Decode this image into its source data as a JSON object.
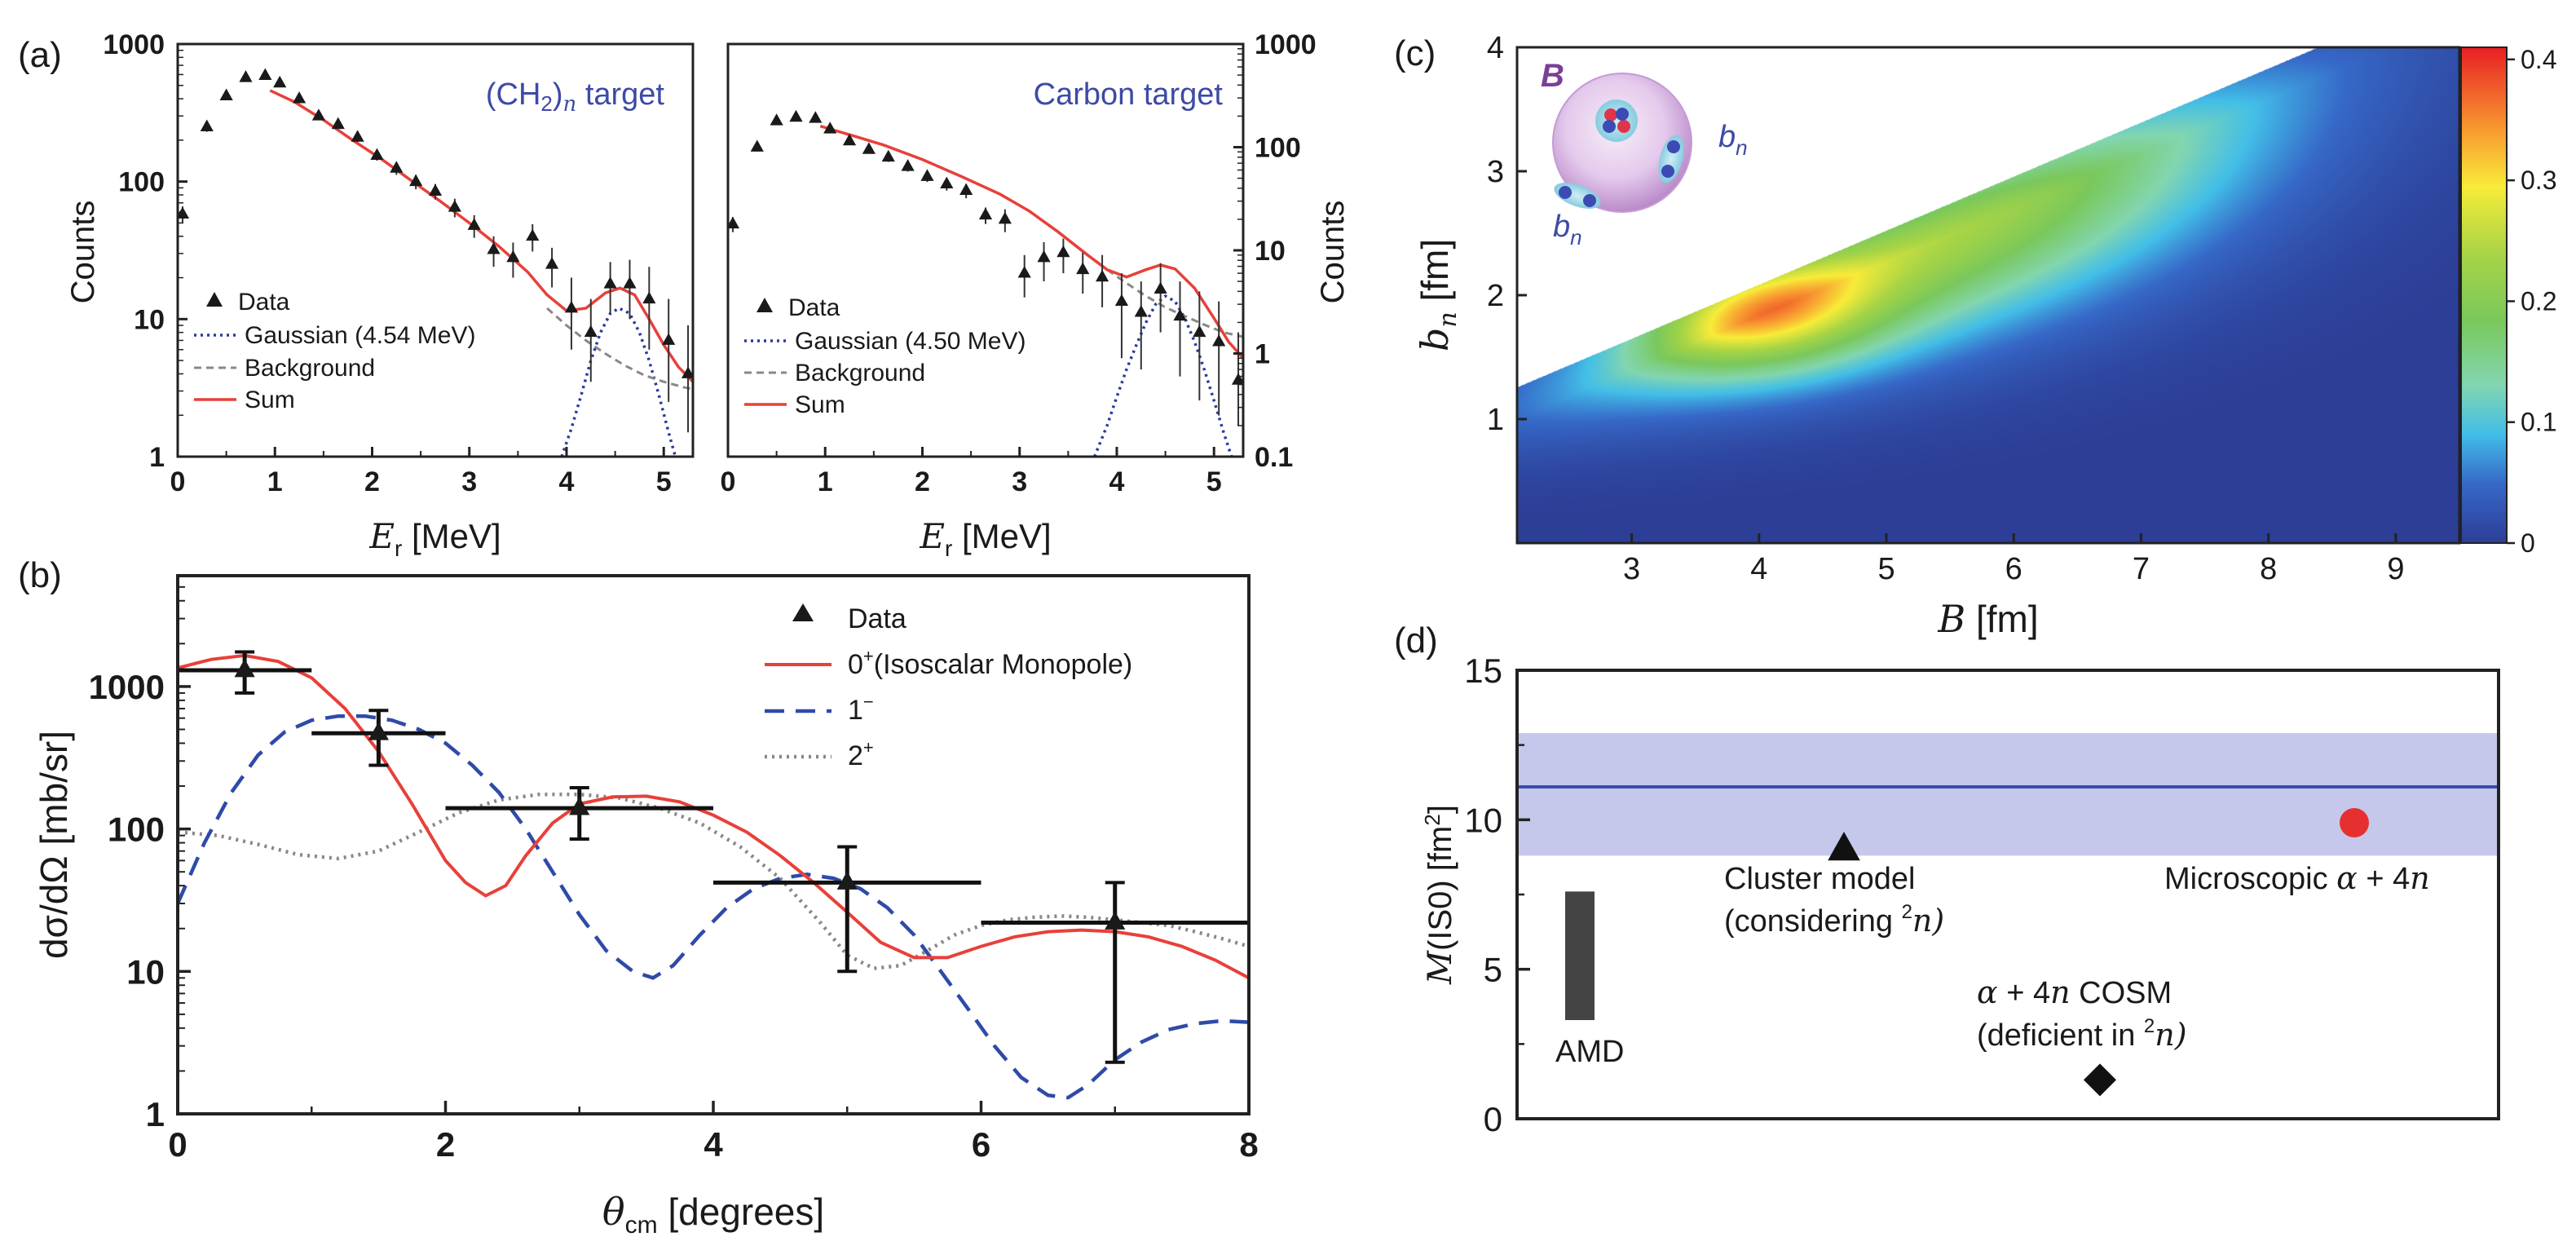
{
  "colors": {
    "red": "#e8403a",
    "blue_dash": "#2f4aa8",
    "blue_dot": "#2a3a9c",
    "gray": "#888888",
    "label_blue": "#3d4aa6",
    "band": "#c5c8ea",
    "band_line": "#3b4bb3",
    "point_red": "#e63030",
    "bar_gray": "#444444"
  },
  "chart_data": [
    {
      "panel": "(a)",
      "type": "scatter",
      "title": "",
      "target_label": {
        "pre": "(CH",
        "sub1": "2",
        "mid": ")",
        "sub2": "n",
        "post": " target"
      },
      "xlabel": "E",
      "xlabel_sub": "r",
      "xlabel_unit": " [MeV]",
      "ylabel": "Counts",
      "xlim": [
        0,
        5.3
      ],
      "ylim": [
        1,
        1000
      ],
      "yscale": "log",
      "xticks": [
        "0",
        "1",
        "2",
        "3",
        "4",
        "5"
      ],
      "yticks": [
        "1",
        "10",
        "100",
        "1000"
      ],
      "legend": {
        "data": "Data",
        "gauss": "Gaussian (4.54 MeV)",
        "bg": "Background",
        "sum": "Sum"
      },
      "data": {
        "x": [
          0.05,
          0.3,
          0.5,
          0.7,
          0.9,
          1.05,
          1.25,
          1.45,
          1.65,
          1.85,
          2.05,
          2.25,
          2.45,
          2.65,
          2.85,
          3.05,
          3.25,
          3.45,
          3.65,
          3.85,
          4.05,
          4.25,
          4.45,
          4.65,
          4.85,
          5.05,
          5.25
        ],
        "y": [
          58,
          250,
          420,
          570,
          590,
          520,
          400,
          300,
          260,
          210,
          155,
          125,
          100,
          85,
          65,
          48,
          32,
          28,
          40,
          25,
          12,
          8,
          18,
          18,
          14,
          7,
          4
        ],
        "err_lo": [
          50,
          230,
          400,
          545,
          565,
          495,
          380,
          280,
          242,
          194,
          142,
          112,
          88,
          74,
          55,
          39,
          24,
          20,
          31,
          17,
          6,
          3.5,
          11,
          10,
          6,
          2.5,
          1.5
        ],
        "err_hi": [
          66,
          270,
          440,
          595,
          615,
          545,
          420,
          320,
          278,
          226,
          168,
          138,
          112,
          96,
          75,
          57,
          40,
          36,
          49,
          33,
          20,
          14,
          26,
          27,
          24,
          14,
          9
        ]
      },
      "sum": {
        "x": [
          0.95,
          1.2,
          1.5,
          1.8,
          2.1,
          2.4,
          2.7,
          3.0,
          3.3,
          3.6,
          3.8,
          4.0,
          4.2,
          4.4,
          4.55,
          4.7,
          4.85,
          5.0,
          5.15,
          5.3
        ],
        "y": [
          460,
          380,
          280,
          200,
          145,
          102,
          72,
          50,
          34,
          22,
          15,
          11.5,
          12,
          15.5,
          16.8,
          15,
          10,
          6.5,
          4.5,
          3.5
        ]
      },
      "background": {
        "x": [
          3.8,
          4.0,
          4.2,
          4.4,
          4.6,
          4.8,
          5.0,
          5.2,
          5.3
        ],
        "y": [
          12,
          9,
          7,
          5.6,
          4.6,
          3.9,
          3.5,
          3.2,
          3.1
        ]
      },
      "gaussian": {
        "x": [
          3.95,
          4.05,
          4.15,
          4.25,
          4.35,
          4.45,
          4.54,
          4.65,
          4.75,
          4.85,
          4.95,
          5.05,
          5.12
        ],
        "y": [
          1,
          1.6,
          2.8,
          5,
          8,
          11,
          12,
          11,
          8,
          5,
          2.8,
          1.5,
          1
        ]
      }
    },
    {
      "panel": "",
      "type": "scatter",
      "title": "",
      "target_label": "Carbon target",
      "xlabel": "E",
      "xlabel_sub": "r",
      "xlabel_unit": " [MeV]",
      "ylabel": "Counts",
      "xlim": [
        0,
        5.3
      ],
      "ylim": [
        0.1,
        1000
      ],
      "yscale": "log",
      "xticks": [
        "0",
        "1",
        "2",
        "3",
        "4",
        "5"
      ],
      "yticks": [
        "0.1",
        "1",
        "10",
        "100",
        "1000"
      ],
      "legend": {
        "data": "Data",
        "gauss": "Gaussian (4.50 MeV)",
        "bg": "Background",
        "sum": "Sum"
      },
      "data": {
        "x": [
          0.05,
          0.3,
          0.5,
          0.7,
          0.9,
          1.05,
          1.25,
          1.45,
          1.65,
          1.85,
          2.05,
          2.25,
          2.45,
          2.65,
          2.85,
          3.05,
          3.25,
          3.45,
          3.65,
          3.85,
          4.05,
          4.25,
          4.45,
          4.65,
          4.85,
          5.05,
          5.25
        ],
        "y": [
          18,
          100,
          180,
          195,
          190,
          150,
          115,
          95,
          80,
          65,
          52,
          44,
          38,
          22,
          20,
          6,
          8.5,
          9.5,
          6.5,
          5.5,
          3.2,
          2.5,
          4.2,
          2.3,
          1.6,
          1.3,
          0.55
        ],
        "err_lo": [
          15,
          92,
          168,
          183,
          178,
          140,
          106,
          87,
          72,
          58,
          46,
          38,
          32,
          18,
          15,
          3.5,
          5,
          6,
          3.8,
          2.8,
          0.9,
          0.7,
          1.6,
          0.6,
          0.35,
          0.25,
          0.2
        ],
        "err_hi": [
          21,
          108,
          192,
          207,
          202,
          160,
          124,
          103,
          88,
          72,
          58,
          50,
          44,
          26,
          25,
          9,
          12,
          13,
          9.5,
          9,
          6,
          5,
          7.5,
          5,
          4,
          3.2,
          1.6
        ]
      },
      "sum": {
        "x": [
          0.95,
          1.3,
          1.6,
          2.0,
          2.4,
          2.8,
          3.1,
          3.4,
          3.7,
          3.9,
          4.1,
          4.3,
          4.45,
          4.6,
          4.8,
          5.0,
          5.15,
          5.3
        ],
        "y": [
          160,
          128,
          105,
          76,
          52,
          35,
          24,
          15,
          9,
          6.5,
          5.5,
          6.5,
          7.2,
          6.6,
          4.3,
          2.2,
          1.3,
          0.9
        ]
      },
      "background": {
        "x": [
          3.7,
          3.9,
          4.1,
          4.3,
          4.5,
          4.7,
          4.9,
          5.1,
          5.3
        ],
        "y": [
          9,
          6.5,
          4.8,
          3.6,
          2.8,
          2.3,
          1.9,
          1.6,
          1.45
        ]
      },
      "gaussian": {
        "x": [
          3.77,
          3.9,
          4.0,
          4.1,
          4.2,
          4.3,
          4.4,
          4.5,
          4.6,
          4.7,
          4.8,
          4.9,
          5.0,
          5.1,
          5.18
        ],
        "y": [
          0.1,
          0.2,
          0.38,
          0.7,
          1.2,
          2.0,
          3.0,
          3.6,
          3.2,
          2.2,
          1.3,
          0.7,
          0.35,
          0.17,
          0.1
        ]
      }
    },
    {
      "panel": "(b)",
      "type": "line",
      "title": "",
      "xlabel": "θ",
      "xlabel_sub": "cm",
      "xlabel_unit": " [degrees]",
      "ylabel": "dσ/dΩ [mb/sr]",
      "xlim": [
        0,
        8
      ],
      "ylim": [
        1,
        6000
      ],
      "yscale": "log",
      "xticks": [
        "0",
        "2",
        "4",
        "6",
        "8"
      ],
      "yticks": [
        "1",
        "10",
        "100",
        "1000"
      ],
      "legend": {
        "data": "Data",
        "s0": "0",
        "s0_sup": "+",
        "s0_post": "(Isoscalar Monopole)",
        "s1": "1",
        "s1_sup": "−",
        "s2": "2",
        "s2_sup": "+"
      },
      "data": {
        "x": [
          0.5,
          1.5,
          3.0,
          5.0,
          7.0
        ],
        "y": [
          1300,
          470,
          140,
          42,
          22
        ],
        "xerr": [
          0.5,
          0.5,
          1.0,
          1.0,
          1.0
        ],
        "y_lo": [
          900,
          280,
          85,
          10,
          2.3
        ],
        "y_hi": [
          1750,
          680,
          195,
          75,
          42
        ]
      },
      "series": [
        {
          "name": "0+ (Isoscalar Monopole)",
          "x": [
            0,
            0.25,
            0.5,
            0.75,
            1.0,
            1.25,
            1.5,
            1.75,
            2.0,
            2.15,
            2.3,
            2.45,
            2.6,
            2.8,
            3.0,
            3.25,
            3.5,
            3.75,
            4.0,
            4.25,
            4.5,
            4.75,
            5.0,
            5.25,
            5.5,
            5.75,
            6.0,
            6.25,
            6.5,
            6.75,
            7.0,
            7.25,
            7.5,
            7.75,
            8.0
          ],
          "y": [
            1350,
            1550,
            1650,
            1500,
            1150,
            700,
            350,
            150,
            60,
            42,
            34,
            40,
            65,
            110,
            150,
            168,
            170,
            155,
            125,
            95,
            65,
            42,
            26,
            16,
            12.5,
            12.5,
            15,
            17.5,
            19,
            19.5,
            19,
            17.5,
            15,
            12,
            9
          ]
        },
        {
          "name": "1−",
          "x": [
            0,
            0.2,
            0.4,
            0.6,
            0.8,
            1.0,
            1.2,
            1.4,
            1.6,
            1.8,
            2.0,
            2.2,
            2.4,
            2.6,
            2.8,
            3.0,
            3.2,
            3.4,
            3.55,
            3.7,
            3.9,
            4.1,
            4.3,
            4.5,
            4.7,
            4.9,
            5.1,
            5.3,
            5.5,
            5.7,
            5.9,
            6.1,
            6.3,
            6.5,
            6.65,
            6.8,
            7.0,
            7.2,
            7.4,
            7.6,
            7.8,
            8.0
          ],
          "y": [
            30,
            80,
            180,
            330,
            480,
            580,
            620,
            620,
            580,
            500,
            400,
            280,
            180,
            100,
            50,
            25,
            14,
            10,
            9,
            11,
            18,
            28,
            38,
            45,
            48,
            45,
            38,
            28,
            18,
            10,
            5.5,
            3,
            1.8,
            1.35,
            1.3,
            1.6,
            2.4,
            3.2,
            3.9,
            4.3,
            4.5,
            4.4
          ]
        },
        {
          "name": "2+",
          "x": [
            0,
            0.3,
            0.6,
            0.9,
            1.2,
            1.5,
            1.8,
            2.1,
            2.4,
            2.7,
            3.0,
            3.3,
            3.6,
            3.9,
            4.2,
            4.5,
            4.8,
            5.0,
            5.2,
            5.4,
            5.6,
            5.8,
            6.0,
            6.2,
            6.4,
            6.6,
            6.8,
            7.0,
            7.2,
            7.4,
            7.6,
            7.8,
            8.0
          ],
          "y": [
            95,
            90,
            78,
            66,
            62,
            70,
            95,
            130,
            160,
            175,
            175,
            165,
            140,
            110,
            75,
            45,
            22,
            13,
            10.5,
            11,
            14,
            18,
            21,
            23,
            24,
            24.5,
            24,
            23,
            22,
            21,
            19,
            17,
            15
          ]
        }
      ]
    },
    {
      "panel": "(c)",
      "type": "heatmap",
      "title": "",
      "xlabel": "B",
      "xlabel_unit": " [fm]",
      "ylabel": "b",
      "ylabel_sub": "n",
      "ylabel_unit": " [fm]",
      "xlim": [
        2.1,
        9.5
      ],
      "ylim": [
        0,
        4
      ],
      "xticks": [
        "3",
        "4",
        "5",
        "6",
        "7",
        "8",
        "9"
      ],
      "yticks": [
        "1",
        "2",
        "3",
        "4"
      ],
      "colorbar": {
        "min": 0,
        "max": 0.41,
        "ticks": [
          "0",
          "0.1",
          "0.2",
          "0.3",
          "0.4"
        ]
      },
      "peak": {
        "B": 3.85,
        "bn": 1.95,
        "value": 0.41
      },
      "valid_region": "b_n < 0.5·B (approx)",
      "inset": {
        "big": "B",
        "small": "b",
        "small_sub": "n"
      }
    },
    {
      "panel": "(d)",
      "type": "scatter",
      "title": "",
      "ylabel": "M(IS0) [fm²]",
      "ylabel_parts": {
        "m": "M",
        "rest": "(IS0) [fm",
        "sup": "2",
        "end": "]"
      },
      "ylim": [
        0,
        15
      ],
      "yticks": [
        "0",
        "5",
        "10",
        "15"
      ],
      "band": {
        "center": 11.1,
        "low": 8.8,
        "high": 12.9
      },
      "points": [
        {
          "name": "Cluster model (considering ²n)",
          "value": 9.0,
          "marker": "triangle"
        },
        {
          "name": "Microscopic α + 4n",
          "value": 9.9,
          "marker": "circle"
        },
        {
          "name": "α + 4n COSM (deficient in ²n)",
          "value": 1.3,
          "marker": "diamond"
        },
        {
          "name": "AMD",
          "low": 3.3,
          "high": 7.6,
          "marker": "bar"
        }
      ],
      "labels": {
        "cluster_1": "Cluster model",
        "cluster_2a": "(considering ",
        "cluster_2sup": "2",
        "cluster_2b": "n)",
        "micro_a": "Microscopic ",
        "micro_alpha": "α",
        "micro_b": " + 4",
        "micro_n": "n",
        "cosm_alpha": "α",
        "cosm_a": " + 4",
        "cosm_n": "n",
        "cosm_b": " COSM",
        "cosm2_a": "(deficient in ",
        "cosm2_sup": "2",
        "cosm2_b": "n)",
        "amd": "AMD"
      }
    }
  ]
}
